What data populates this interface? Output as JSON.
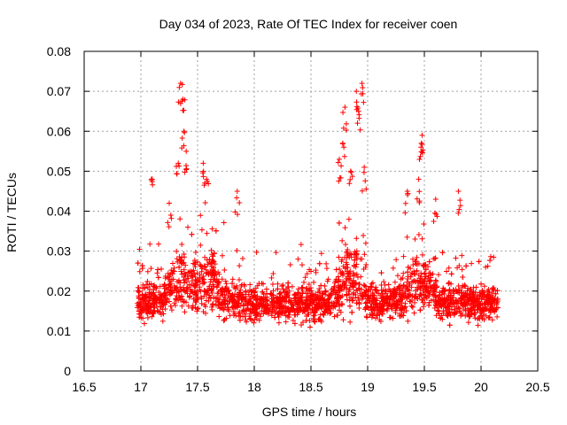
{
  "chart_data": {
    "type": "scatter",
    "title": "Day 034 of 2023, Rate Of TEC Index for receiver coen",
    "xlabel": "GPS time / hours",
    "ylabel": "ROTI / TECUs",
    "xlim": [
      16.5,
      20.5
    ],
    "ylim": [
      0,
      0.08
    ],
    "xticks": [
      16.5,
      17,
      17.5,
      18,
      18.5,
      19,
      19.5,
      20,
      20.5
    ],
    "yticks": [
      0,
      0.01,
      0.02,
      0.03,
      0.04,
      0.05,
      0.06,
      0.07,
      0.08
    ],
    "xtick_labels": [
      "16.5",
      "17",
      "17.5",
      "18",
      "18.5",
      "19",
      "19.5",
      "20",
      "20.5"
    ],
    "ytick_labels": [
      "0",
      "0.01",
      "0.02",
      "0.03",
      "0.04",
      "0.05",
      "0.06",
      "0.07",
      "0.08"
    ],
    "grid": true,
    "marker": "+",
    "color": "#ff0000",
    "series": [
      {
        "name": "ROTI",
        "x_range": [
          16.97,
          20.15
        ],
        "baseline_band": [
          0.005,
          0.03
        ],
        "peaks": [
          {
            "x": 17.35,
            "y": 0.072
          },
          {
            "x": 17.37,
            "y": 0.068
          },
          {
            "x": 17.38,
            "y": 0.06
          },
          {
            "x": 17.4,
            "y": 0.055
          },
          {
            "x": 17.33,
            "y": 0.052
          },
          {
            "x": 17.55,
            "y": 0.052
          },
          {
            "x": 17.58,
            "y": 0.048
          },
          {
            "x": 17.1,
            "y": 0.048
          },
          {
            "x": 17.25,
            "y": 0.042
          },
          {
            "x": 17.85,
            "y": 0.045
          },
          {
            "x": 18.8,
            "y": 0.066
          },
          {
            "x": 18.78,
            "y": 0.057
          },
          {
            "x": 18.75,
            "y": 0.053
          },
          {
            "x": 18.9,
            "y": 0.07
          },
          {
            "x": 18.92,
            "y": 0.065
          },
          {
            "x": 18.95,
            "y": 0.072
          },
          {
            "x": 18.97,
            "y": 0.051
          },
          {
            "x": 18.85,
            "y": 0.05
          },
          {
            "x": 19.48,
            "y": 0.059
          },
          {
            "x": 19.47,
            "y": 0.056
          },
          {
            "x": 19.45,
            "y": 0.048
          },
          {
            "x": 19.35,
            "y": 0.045
          },
          {
            "x": 19.6,
            "y": 0.043
          },
          {
            "x": 19.8,
            "y": 0.045
          }
        ]
      }
    ]
  }
}
